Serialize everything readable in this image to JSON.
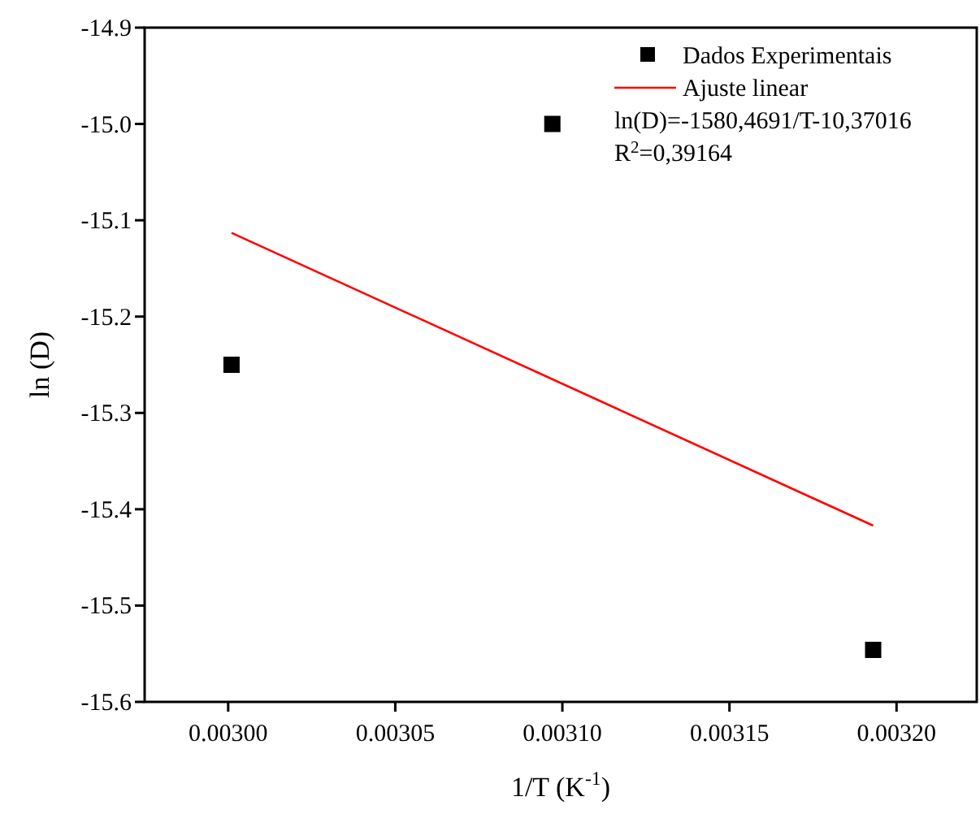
{
  "chart_data": {
    "type": "scatter",
    "xlabel": "1/T (K$^{-1}$)",
    "ylabel": "ln (D)",
    "xlim": [
      0.002975,
      0.003224
    ],
    "xticks": [
      {
        "value": 0.003,
        "label": "0.00300"
      },
      {
        "value": 0.00305,
        "label": "0.00305"
      },
      {
        "value": 0.0031,
        "label": "0.00310"
      },
      {
        "value": 0.00315,
        "label": "0.00315"
      },
      {
        "value": 0.0032,
        "label": "0.00320"
      }
    ],
    "ylim": [
      -15.6,
      -14.9
    ],
    "yticks": [
      {
        "value": -15.6,
        "label": "-15.6"
      },
      {
        "value": -15.5,
        "label": "-15.5"
      },
      {
        "value": -15.4,
        "label": "-15.4"
      },
      {
        "value": -15.3,
        "label": "-15.3"
      },
      {
        "value": -15.2,
        "label": "-15.2"
      },
      {
        "value": -15.1,
        "label": "-15.1"
      },
      {
        "value": -15.0,
        "label": "-15.0"
      },
      {
        "value": -14.9,
        "label": "-14.9"
      }
    ],
    "series": [
      {
        "name": "Dados Experimentais",
        "color": "#000000",
        "marker": "square",
        "x": [
          0.003001,
          0.003097,
          0.003193
        ],
        "values": [
          -15.25,
          -15.0,
          -15.546
        ]
      },
      {
        "name": "Ajuste linear",
        "type": "line",
        "color": "#ff0000",
        "line_style": "solid",
        "x": [
          0.003001,
          0.003193
        ],
        "values": [
          -15.113,
          -15.417
        ]
      }
    ],
    "annotations": [
      "ln(D)=-1580,4691/T-10,37016",
      "R$^{2}$=0,39164"
    ],
    "grid": false,
    "legend": "top right"
  }
}
